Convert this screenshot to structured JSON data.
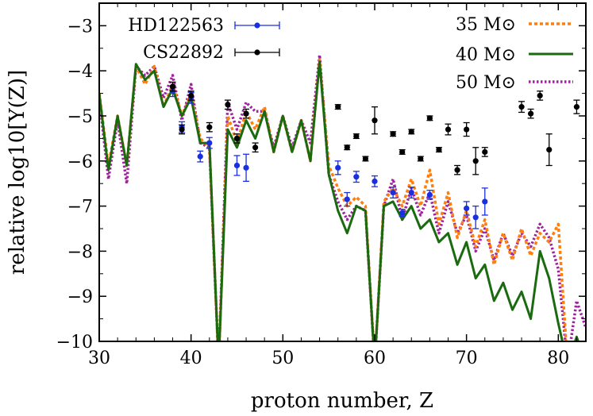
{
  "chart_data": {
    "type": "line",
    "xlabel": "proton number, Z",
    "ylabel": "relative log10[Y(Z)]",
    "xlim": [
      30,
      83
    ],
    "ylim": [
      -10,
      -2.5
    ],
    "x_ticks": [
      30,
      40,
      50,
      60,
      70,
      80
    ],
    "y_ticks": [
      -10,
      -9,
      -8,
      -7,
      -6,
      -5,
      -4,
      -3
    ],
    "x_tick_labels": [
      "30",
      "40",
      "50",
      "60",
      "70",
      "80"
    ],
    "y_tick_labels": [
      "−10",
      "−9",
      "−8",
      "−7",
      "−6",
      "−5",
      "−4",
      "−3"
    ],
    "grid": false,
    "series": [
      {
        "name": "50 M⊙",
        "style": "dotted",
        "color": "#a020a0",
        "x": [
          30,
          31,
          32,
          33,
          34,
          35,
          36,
          37,
          38,
          39,
          40,
          41,
          42,
          43,
          44,
          45,
          46,
          47,
          48,
          49,
          50,
          51,
          52,
          53,
          54,
          55,
          56,
          57,
          58,
          59,
          60,
          61,
          62,
          63,
          64,
          65,
          66,
          67,
          68,
          69,
          70,
          71,
          72,
          73,
          74,
          75,
          76,
          77,
          78,
          79,
          80,
          81,
          82,
          83
        ],
        "y": [
          -4.6,
          -6.4,
          -5.1,
          -6.5,
          -3.9,
          -4.1,
          -3.9,
          -4.6,
          -4.1,
          -5.1,
          -4.3,
          -5.6,
          -5.7,
          -10.5,
          -4.7,
          -5.3,
          -4.7,
          -4.9,
          -4.9,
          -5.7,
          -5.0,
          -5.7,
          -5.1,
          -5.6,
          -3.65,
          -6.3,
          -6.9,
          -7.3,
          -7.0,
          -7.1,
          -10.5,
          -7.0,
          -6.4,
          -7.3,
          -6.6,
          -7.2,
          -6.7,
          -7.6,
          -6.9,
          -7.6,
          -7.2,
          -8.0,
          -7.5,
          -8.2,
          -7.6,
          -8.1,
          -7.6,
          -7.9,
          -7.4,
          -7.7,
          -8.4,
          -10.5,
          -9.1,
          -9.7
        ]
      },
      {
        "name": "35 M⊙",
        "style": "dashed",
        "color": "#ff7f0e",
        "x": [
          30,
          31,
          32,
          33,
          34,
          35,
          36,
          37,
          38,
          39,
          40,
          41,
          42,
          43,
          44,
          45,
          46,
          47,
          48,
          49,
          50,
          51,
          52,
          53,
          54,
          55,
          56,
          57,
          58,
          59,
          60,
          61,
          62,
          63,
          64,
          65,
          66,
          67,
          68,
          69,
          70,
          71,
          72,
          73,
          74,
          75,
          76,
          77,
          78,
          79,
          80,
          81,
          82,
          83
        ],
        "y": [
          -4.5,
          -6.1,
          -5.0,
          -6.1,
          -3.9,
          -4.3,
          -3.9,
          -4.8,
          -4.3,
          -5.0,
          -4.5,
          -5.5,
          -5.7,
          -10.5,
          -5.0,
          -5.6,
          -4.9,
          -5.3,
          -4.8,
          -5.8,
          -5.0,
          -5.8,
          -5.1,
          -6.0,
          -3.75,
          -6.1,
          -6.6,
          -7.0,
          -6.8,
          -7.0,
          -10.5,
          -6.9,
          -6.6,
          -7.0,
          -6.4,
          -7.0,
          -6.2,
          -7.4,
          -6.7,
          -7.7,
          -7.1,
          -7.9,
          -7.3,
          -8.3,
          -7.6,
          -8.2,
          -7.5,
          -8.1,
          -7.6,
          -7.8,
          -7.4,
          -10.5,
          -10.5,
          -10.5
        ]
      },
      {
        "name": "40 M⊙",
        "style": "solid",
        "color": "#1a6b0f",
        "x": [
          30,
          31,
          32,
          33,
          34,
          35,
          36,
          37,
          38,
          39,
          40,
          41,
          42,
          43,
          44,
          45,
          46,
          47,
          48,
          49,
          50,
          51,
          52,
          53,
          54,
          55,
          56,
          57,
          58,
          59,
          60,
          61,
          62,
          63,
          64,
          65,
          66,
          67,
          68,
          69,
          70,
          71,
          72,
          73,
          74,
          75,
          76,
          77,
          78,
          79,
          80,
          81,
          82,
          83
        ],
        "y": [
          -4.5,
          -6.2,
          -5.0,
          -6.1,
          -3.85,
          -4.2,
          -4.0,
          -4.8,
          -4.4,
          -5.0,
          -4.6,
          -5.6,
          -5.6,
          -10.5,
          -5.3,
          -5.7,
          -5.1,
          -5.5,
          -4.9,
          -5.8,
          -5.0,
          -5.8,
          -5.1,
          -6.0,
          -3.8,
          -6.3,
          -7.1,
          -7.6,
          -7.0,
          -7.1,
          -10.5,
          -7.0,
          -6.9,
          -7.3,
          -7.0,
          -7.5,
          -7.3,
          -7.8,
          -7.6,
          -8.3,
          -7.8,
          -8.6,
          -8.3,
          -9.1,
          -8.7,
          -9.3,
          -8.9,
          -9.5,
          -8.0,
          -8.6,
          -9.6,
          -10.5,
          -9.9,
          -10.5
        ]
      }
    ],
    "observed": [
      {
        "name": "HD122563",
        "color": "#1a2fe0",
        "points": [
          {
            "x": 38,
            "y": -4.45,
            "err": 0.12
          },
          {
            "x": 39,
            "y": -5.25,
            "err": 0.12
          },
          {
            "x": 40,
            "y": -4.6,
            "err": 0.12
          },
          {
            "x": 41,
            "y": -5.9,
            "err": 0.12
          },
          {
            "x": 42,
            "y": -5.6,
            "err": 0.12
          },
          {
            "x": 45,
            "y": -6.1,
            "err": 0.22
          },
          {
            "x": 46,
            "y": -6.15,
            "err": 0.3
          },
          {
            "x": 56,
            "y": -6.15,
            "err": 0.15
          },
          {
            "x": 57,
            "y": -6.85,
            "err": 0.15
          },
          {
            "x": 58,
            "y": -6.35,
            "err": 0.12
          },
          {
            "x": 60,
            "y": -6.45,
            "err": 0.12
          },
          {
            "x": 62,
            "y": -6.7,
            "err": 0.12
          },
          {
            "x": 63,
            "y": -7.15,
            "err": 0.08
          },
          {
            "x": 64,
            "y": -6.7,
            "err": 0.12
          },
          {
            "x": 66,
            "y": -6.75,
            "err": 0.1
          },
          {
            "x": 70,
            "y": -7.05,
            "err": 0.15
          },
          {
            "x": 71,
            "y": -7.25,
            "err": 0.25
          },
          {
            "x": 72,
            "y": -6.9,
            "err": 0.3
          }
        ]
      },
      {
        "name": "CS22892",
        "color": "#000000",
        "points": [
          {
            "x": 38,
            "y": -4.35,
            "err": 0.1
          },
          {
            "x": 39,
            "y": -5.3,
            "err": 0.1
          },
          {
            "x": 40,
            "y": -4.55,
            "err": 0.1
          },
          {
            "x": 42,
            "y": -5.25,
            "err": 0.1
          },
          {
            "x": 44,
            "y": -4.75,
            "err": 0.1
          },
          {
            "x": 45,
            "y": -5.5,
            "err": 0.1
          },
          {
            "x": 46,
            "y": -4.95,
            "err": 0.1
          },
          {
            "x": 47,
            "y": -5.7,
            "err": 0.1
          },
          {
            "x": 56,
            "y": -4.8,
            "err": 0.05
          },
          {
            "x": 57,
            "y": -5.7,
            "err": 0.05
          },
          {
            "x": 58,
            "y": -5.45,
            "err": 0.05
          },
          {
            "x": 59,
            "y": -5.95,
            "err": 0.05
          },
          {
            "x": 60,
            "y": -5.1,
            "err": 0.3
          },
          {
            "x": 62,
            "y": -5.4,
            "err": 0.05
          },
          {
            "x": 63,
            "y": -5.8,
            "err": 0.05
          },
          {
            "x": 64,
            "y": -5.35,
            "err": 0.05
          },
          {
            "x": 65,
            "y": -5.95,
            "err": 0.05
          },
          {
            "x": 66,
            "y": -5.05,
            "err": 0.05
          },
          {
            "x": 67,
            "y": -5.75,
            "err": 0.05
          },
          {
            "x": 68,
            "y": -5.3,
            "err": 0.12
          },
          {
            "x": 69,
            "y": -6.2,
            "err": 0.1
          },
          {
            "x": 70,
            "y": -5.3,
            "err": 0.15
          },
          {
            "x": 71,
            "y": -6.0,
            "err": 0.3
          },
          {
            "x": 72,
            "y": -5.8,
            "err": 0.1
          },
          {
            "x": 76,
            "y": -4.8,
            "err": 0.12
          },
          {
            "x": 77,
            "y": -4.95,
            "err": 0.1
          },
          {
            "x": 78,
            "y": -4.55,
            "err": 0.1
          },
          {
            "x": 79,
            "y": -5.75,
            "err": 0.35
          },
          {
            "x": 82,
            "y": -4.8,
            "err": 0.15
          }
        ]
      }
    ],
    "legend": {
      "placement": "top",
      "entries": [
        "HD122563",
        "CS22892",
        "35 M⊙",
        "40 M⊙",
        "50 M⊙"
      ]
    }
  }
}
